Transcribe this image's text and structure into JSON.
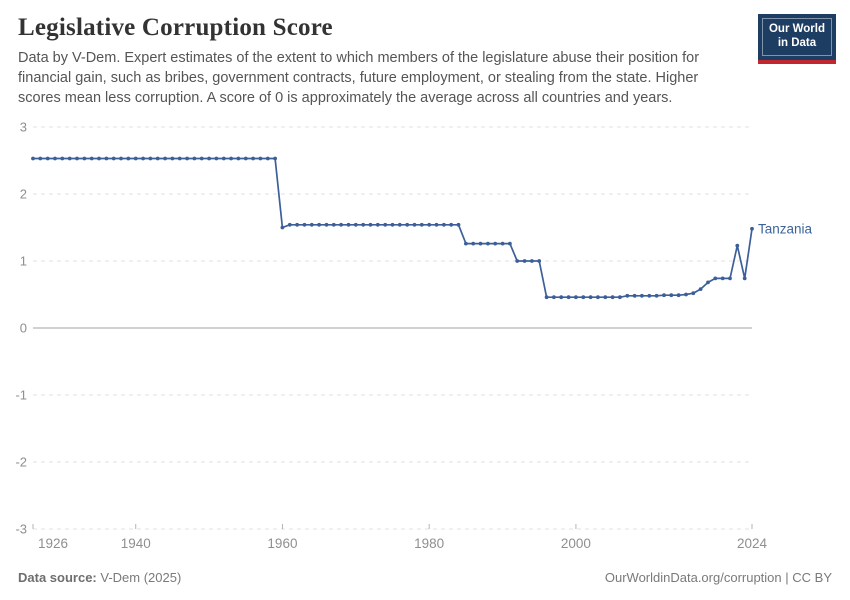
{
  "header": {
    "title": "Legislative Corruption Score",
    "subtitle": "Data by V-Dem. Expert estimates of the extent to which members of the legislature abuse their position for financial gain, such as bribes, government contracts, future employment, or stealing from the state. Higher scores mean less corruption. A score of 0 is approximately the average across all countries and years.",
    "logo": {
      "line1": "Our World",
      "line2": "in Data",
      "bg_color": "#1d3d63",
      "stripe_color": "#c2272f"
    }
  },
  "chart_data": {
    "type": "line",
    "title": "Legislative Corruption Score",
    "xlabel": "",
    "ylabel": "",
    "xlim": [
      1926,
      2024
    ],
    "ylim": [
      -3,
      3
    ],
    "x_ticks": [
      1926,
      1940,
      1960,
      1980,
      2000,
      2024
    ],
    "y_ticks": [
      3,
      2,
      1,
      0,
      -1,
      -2,
      -3
    ],
    "grid": "dashed-horizontal",
    "zero_line": true,
    "legend_position": "end-of-line-label",
    "series": [
      {
        "name": "Tanzania",
        "color": "#3d5f99",
        "label_color": "#3d6399",
        "points": [
          [
            1926,
            2.53
          ],
          [
            1927,
            2.53
          ],
          [
            1928,
            2.53
          ],
          [
            1929,
            2.53
          ],
          [
            1930,
            2.53
          ],
          [
            1931,
            2.53
          ],
          [
            1932,
            2.53
          ],
          [
            1933,
            2.53
          ],
          [
            1934,
            2.53
          ],
          [
            1935,
            2.53
          ],
          [
            1936,
            2.53
          ],
          [
            1937,
            2.53
          ],
          [
            1938,
            2.53
          ],
          [
            1939,
            2.53
          ],
          [
            1940,
            2.53
          ],
          [
            1941,
            2.53
          ],
          [
            1942,
            2.53
          ],
          [
            1943,
            2.53
          ],
          [
            1944,
            2.53
          ],
          [
            1945,
            2.53
          ],
          [
            1946,
            2.53
          ],
          [
            1947,
            2.53
          ],
          [
            1948,
            2.53
          ],
          [
            1949,
            2.53
          ],
          [
            1950,
            2.53
          ],
          [
            1951,
            2.53
          ],
          [
            1952,
            2.53
          ],
          [
            1953,
            2.53
          ],
          [
            1954,
            2.53
          ],
          [
            1955,
            2.53
          ],
          [
            1956,
            2.53
          ],
          [
            1957,
            2.53
          ],
          [
            1958,
            2.53
          ],
          [
            1959,
            2.53
          ],
          [
            1960,
            1.5
          ],
          [
            1961,
            1.54
          ],
          [
            1962,
            1.54
          ],
          [
            1963,
            1.54
          ],
          [
            1964,
            1.54
          ],
          [
            1965,
            1.54
          ],
          [
            1966,
            1.54
          ],
          [
            1967,
            1.54
          ],
          [
            1968,
            1.54
          ],
          [
            1969,
            1.54
          ],
          [
            1970,
            1.54
          ],
          [
            1971,
            1.54
          ],
          [
            1972,
            1.54
          ],
          [
            1973,
            1.54
          ],
          [
            1974,
            1.54
          ],
          [
            1975,
            1.54
          ],
          [
            1976,
            1.54
          ],
          [
            1977,
            1.54
          ],
          [
            1978,
            1.54
          ],
          [
            1979,
            1.54
          ],
          [
            1980,
            1.54
          ],
          [
            1981,
            1.54
          ],
          [
            1982,
            1.54
          ],
          [
            1983,
            1.54
          ],
          [
            1984,
            1.54
          ],
          [
            1985,
            1.26
          ],
          [
            1986,
            1.26
          ],
          [
            1987,
            1.26
          ],
          [
            1988,
            1.26
          ],
          [
            1989,
            1.26
          ],
          [
            1990,
            1.26
          ],
          [
            1991,
            1.26
          ],
          [
            1992,
            1.0
          ],
          [
            1993,
            1.0
          ],
          [
            1994,
            1.0
          ],
          [
            1995,
            1.0
          ],
          [
            1996,
            0.46
          ],
          [
            1997,
            0.46
          ],
          [
            1998,
            0.46
          ],
          [
            1999,
            0.46
          ],
          [
            2000,
            0.46
          ],
          [
            2001,
            0.46
          ],
          [
            2002,
            0.46
          ],
          [
            2003,
            0.46
          ],
          [
            2004,
            0.46
          ],
          [
            2005,
            0.46
          ],
          [
            2006,
            0.46
          ],
          [
            2007,
            0.48
          ],
          [
            2008,
            0.48
          ],
          [
            2009,
            0.48
          ],
          [
            2010,
            0.48
          ],
          [
            2011,
            0.48
          ],
          [
            2012,
            0.49
          ],
          [
            2013,
            0.49
          ],
          [
            2014,
            0.49
          ],
          [
            2015,
            0.5
          ],
          [
            2016,
            0.52
          ],
          [
            2017,
            0.58
          ],
          [
            2018,
            0.68
          ],
          [
            2019,
            0.74
          ],
          [
            2020,
            0.74
          ],
          [
            2021,
            0.74
          ],
          [
            2022,
            1.23
          ],
          [
            2023,
            0.74
          ],
          [
            2024,
            1.48
          ]
        ]
      }
    ]
  },
  "footer": {
    "source_label": "Data source:",
    "source_value": " V-Dem (2025)",
    "link": "OurWorldinData.org/corruption",
    "separator": " | ",
    "license": "CC BY"
  }
}
